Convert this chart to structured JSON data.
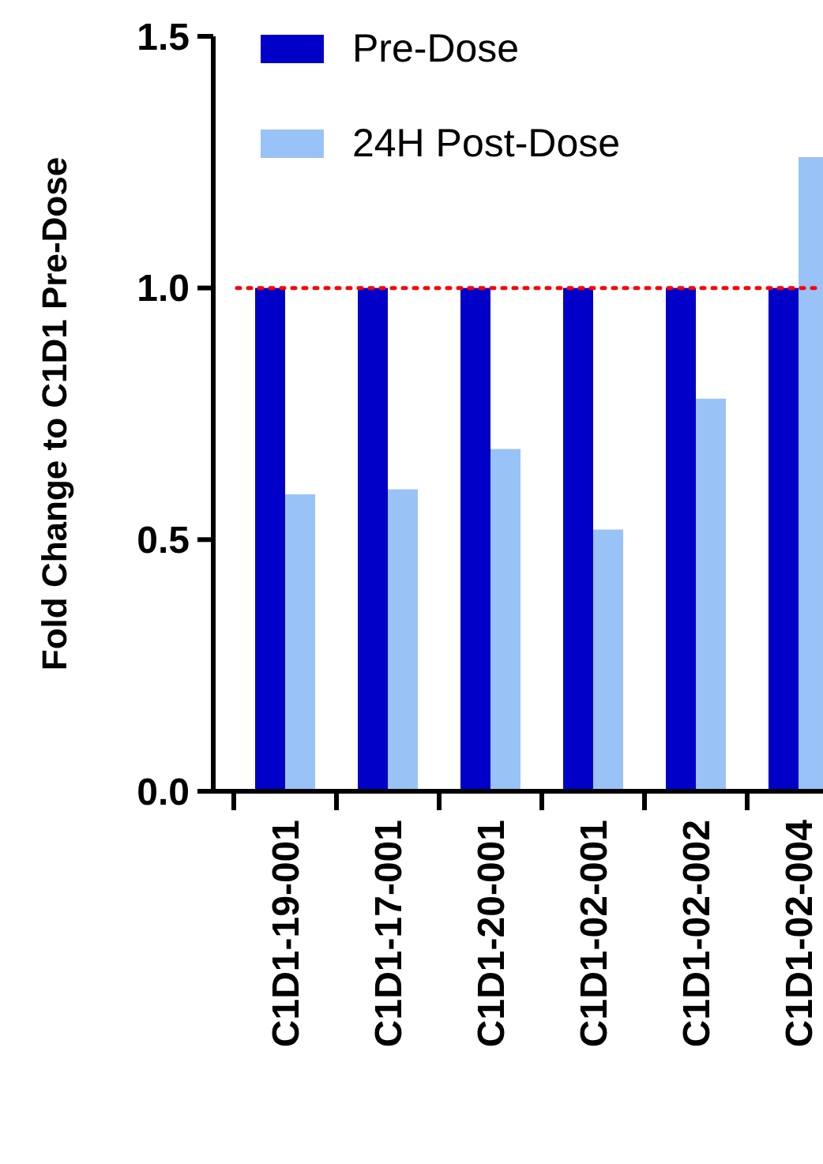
{
  "chart_data": {
    "type": "bar",
    "ylabel": "Fold Change to C1D1 Pre-Dose",
    "categories": [
      "C1D1-19-001",
      "C1D1-17-001",
      "C1D1-20-001",
      "C1D1-02-001",
      "C1D1-02-002",
      "C1D1-02-004"
    ],
    "series": [
      {
        "name": "Pre-Dose",
        "color": "#0000c8",
        "values": [
          1,
          1,
          1,
          1,
          1,
          1
        ]
      },
      {
        "name": "24H Post-Dose",
        "color": "#99c2f7",
        "values": [
          0.59,
          0.6,
          0.68,
          0.52,
          0.78,
          1.26
        ]
      }
    ],
    "ylim": [
      0,
      1.5
    ],
    "yticks": [
      {
        "value": 0,
        "label": "0.0"
      },
      {
        "value": 0.5,
        "label": "0.5"
      },
      {
        "value": 1,
        "label": "1.0"
      },
      {
        "value": 1.5,
        "label": "1.5"
      }
    ],
    "ref_lines": [
      {
        "axis": "y",
        "value": 1,
        "color": "#ff0000",
        "line_style": "dotted"
      }
    ],
    "legend": "top left",
    "grid": false
  }
}
